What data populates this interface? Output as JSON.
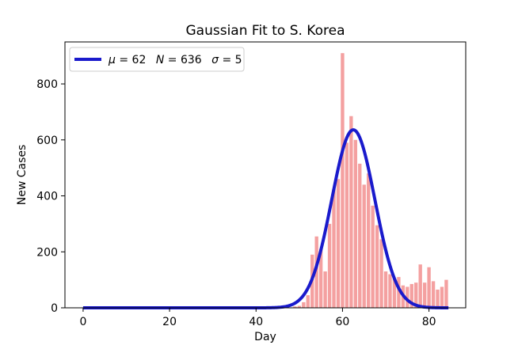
{
  "chart_data": {
    "type": "bar",
    "title": "Gaussian Fit to S. Korea",
    "xlabel": "Day",
    "ylabel": "New Cases",
    "xlim": [
      -4.2,
      88.5
    ],
    "ylim": [
      0,
      950
    ],
    "xticks": [
      0,
      20,
      40,
      60,
      80
    ],
    "yticks": [
      0,
      200,
      400,
      600,
      800
    ],
    "grid": false,
    "legend_position": "top-left",
    "bar_color": "#f4a0a0",
    "line_color": "#1a1acc",
    "bars": {
      "x": [
        49,
        50,
        51,
        52,
        53,
        54,
        55,
        56,
        57,
        58,
        59,
        60,
        61,
        62,
        63,
        64,
        65,
        66,
        67,
        68,
        69,
        70,
        71,
        72,
        73,
        74,
        75,
        76,
        77,
        78,
        79,
        80,
        81,
        82,
        83,
        84
      ],
      "values": [
        5,
        7,
        20,
        45,
        190,
        255,
        210,
        130,
        300,
        425,
        460,
        910,
        590,
        685,
        600,
        515,
        440,
        480,
        365,
        295,
        245,
        130,
        120,
        105,
        110,
        80,
        75,
        85,
        90,
        155,
        90,
        145,
        95,
        65,
        75,
        100
      ]
    },
    "series": [
      {
        "name": "μ = 62  N = 636  σ = 5",
        "kind": "gaussian",
        "params": {
          "mu": 62.5,
          "N": 636,
          "sigma": 5
        },
        "x_range": [
          0,
          84.5
        ]
      }
    ],
    "legend": {
      "mu": "μ",
      "mu_val": "= 62",
      "N": "N",
      "N_val": "= 636",
      "sigma": "σ",
      "sigma_val": "= 5"
    }
  }
}
